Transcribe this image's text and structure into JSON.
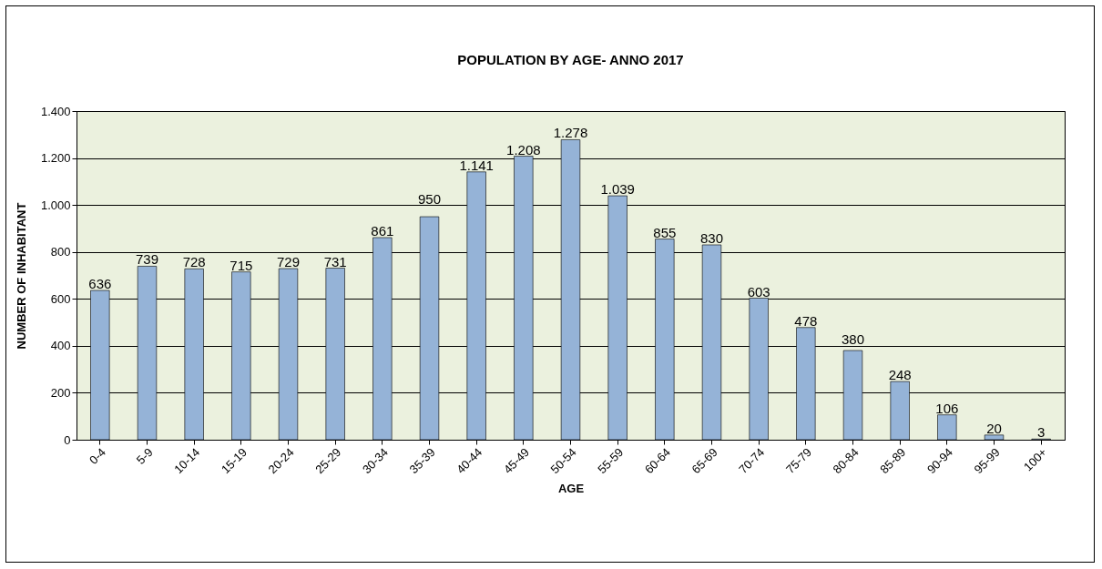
{
  "chart_data": {
    "type": "bar",
    "title": "POPULATION BY AGE- ANNO 2017",
    "xlabel": "AGE",
    "ylabel": "NUMBER OF INHABITANT",
    "categories": [
      "0-4",
      "5-9",
      "10-14",
      "15-19",
      "20-24",
      "25-29",
      "30-34",
      "35-39",
      "40-44",
      "45-49",
      "50-54",
      "55-59",
      "60-64",
      "65-69",
      "70-74",
      "75-79",
      "80-84",
      "85-89",
      "90-94",
      "95-99",
      "100+"
    ],
    "values": [
      636,
      739,
      728,
      715,
      729,
      731,
      861,
      950,
      1141,
      1208,
      1278,
      1039,
      855,
      830,
      603,
      478,
      380,
      248,
      106,
      20,
      3
    ],
    "value_labels": [
      "636",
      "739",
      "728",
      "715",
      "729",
      "731",
      "861",
      "950",
      "1.141",
      "1.208",
      "1.278",
      "1.039",
      "855",
      "830",
      "603",
      "478",
      "380",
      "248",
      "106",
      "20",
      "3"
    ],
    "color": "#95b3d7",
    "ylim": [
      0,
      1400
    ],
    "yticks": [
      0,
      200,
      400,
      600,
      800,
      {
        "value": 1000,
        "label": "1.000"
      },
      {
        "value": 1200,
        "label": "1.200"
      },
      {
        "value": 1400,
        "label": "1.400"
      }
    ],
    "grid": "y"
  }
}
